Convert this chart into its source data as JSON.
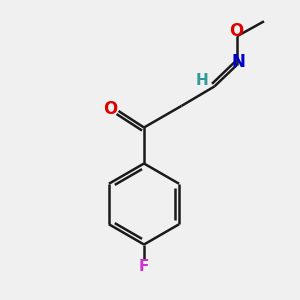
{
  "background_color": "#f0f0f0",
  "bond_color": "#1a1a1a",
  "ring_color": "#1a1a1a",
  "O_color": "#dd0000",
  "N_color": "#0000cc",
  "F_color": "#cc33cc",
  "H_color": "#339999",
  "figsize": [
    3.0,
    3.0
  ],
  "dpi": 100,
  "xlim": [
    0,
    10
  ],
  "ylim": [
    0,
    10
  ]
}
